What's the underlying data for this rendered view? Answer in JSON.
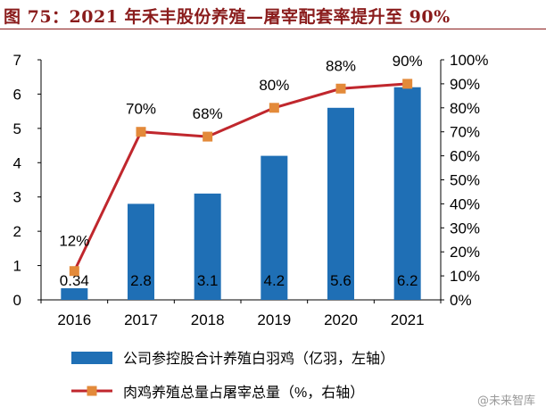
{
  "title": "图 75：2021 年禾丰股份养殖—屠宰配套率提升至 90%",
  "watermark": "@未来智库",
  "colors": {
    "bar": "#1f6fb5",
    "line": "#c0272d",
    "marker": "#e38a3a",
    "title": "#8a1c1c"
  },
  "chart_data": {
    "type": "bar+line",
    "categories": [
      "2016",
      "2017",
      "2018",
      "2019",
      "2020",
      "2021"
    ],
    "series": [
      {
        "name": "公司参控股合计养殖白羽鸡（亿羽，左轴）",
        "type": "bar",
        "axis": "left",
        "values": [
          0.34,
          2.8,
          3.1,
          4.2,
          5.6,
          6.2
        ],
        "labels": [
          "0.34",
          "2.8",
          "3.1",
          "4.2",
          "5.6",
          "6.2"
        ]
      },
      {
        "name": "肉鸡养殖总量占屠宰总量（%，右轴）",
        "type": "line",
        "axis": "right",
        "values": [
          12,
          70,
          68,
          80,
          88,
          90
        ],
        "labels": [
          "12%",
          "70%",
          "68%",
          "80%",
          "88%",
          "90%"
        ]
      }
    ],
    "left_axis": {
      "ylim": [
        0,
        7
      ],
      "ticks": [
        "0",
        "1",
        "2",
        "3",
        "4",
        "5",
        "6",
        "7"
      ]
    },
    "right_axis": {
      "ylim": [
        0,
        100
      ],
      "ticks": [
        "0%",
        "10%",
        "20%",
        "30%",
        "40%",
        "50%",
        "60%",
        "70%",
        "80%",
        "90%",
        "100%"
      ]
    },
    "grid": false,
    "legend_position": "bottom"
  }
}
